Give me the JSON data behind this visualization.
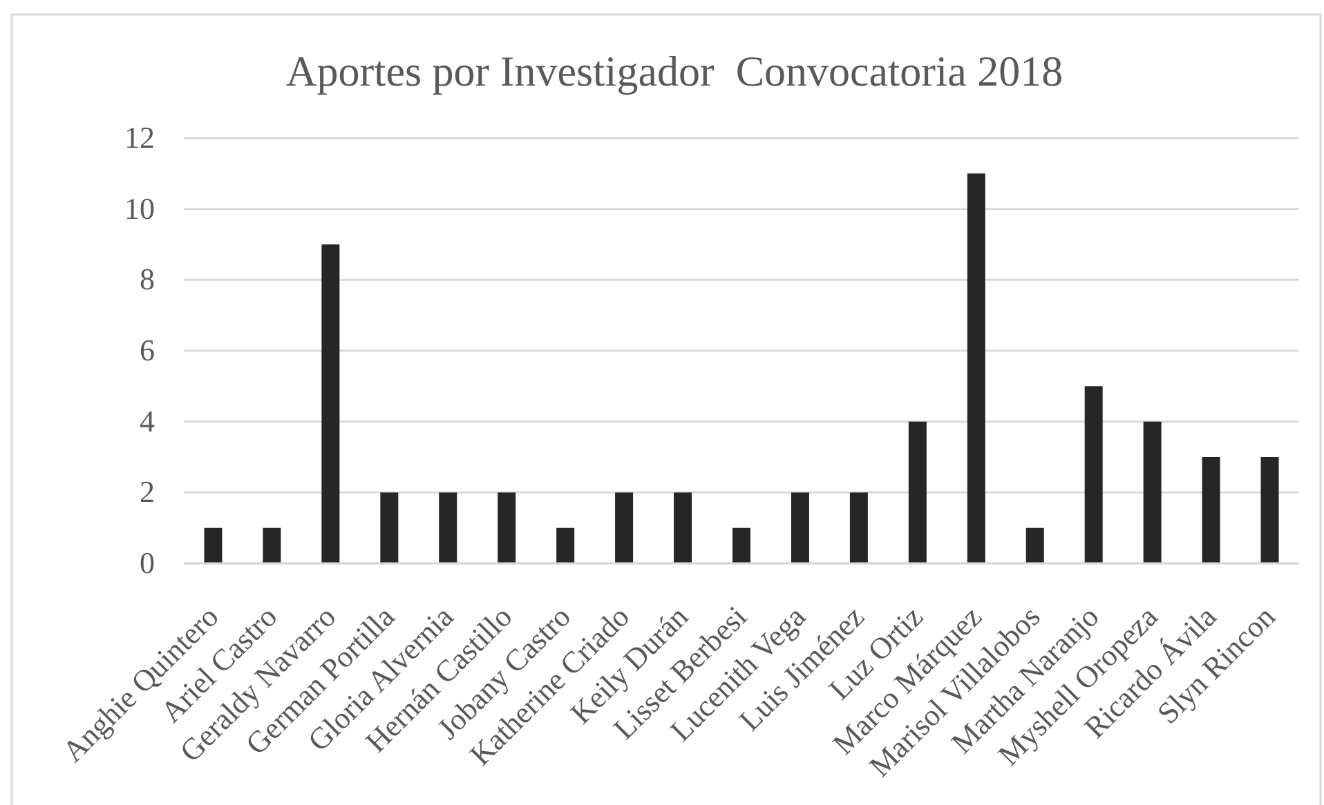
{
  "chart_data": {
    "type": "bar",
    "title": "Aportes por Investigador  Convocatoria 2018",
    "categories": [
      "Anghie Quintero",
      "Ariel Castro",
      "Geraldy Navarro",
      "German Portilla",
      "Gloria Alvernia",
      "Hernán Castillo",
      "Jobany Castro",
      "Katherine Criado",
      "Keily Durán",
      "Lisset Berbesi",
      "Lucenith Vega",
      "Luis Jiménez",
      "Luz Ortiz",
      "Marco Márquez",
      "Marisol Villalobos",
      "Martha Naranjo",
      "Myshell Oropeza",
      "Ricardo Ávila",
      "Slyn Rincon"
    ],
    "values": [
      1,
      1,
      9,
      2,
      2,
      2,
      1,
      2,
      2,
      1,
      2,
      2,
      4,
      11,
      1,
      5,
      4,
      3,
      3
    ],
    "color": "#262626",
    "ylim": [
      0,
      12
    ],
    "yticks": [
      0,
      2,
      4,
      6,
      8,
      10,
      12
    ],
    "grid": "y"
  }
}
